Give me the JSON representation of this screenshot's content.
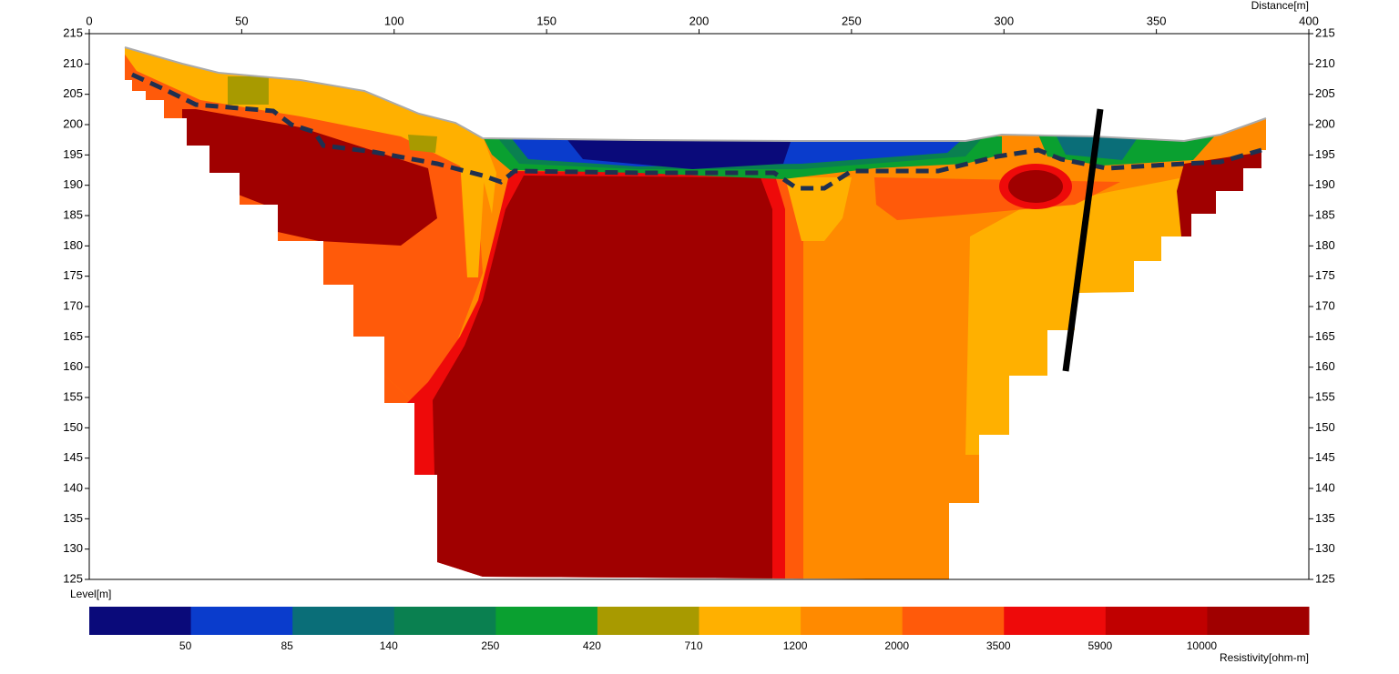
{
  "chart_data": {
    "type": "contour",
    "x_label": "Distance[m]",
    "y_label": "Level[m]",
    "xlim": [
      0,
      400
    ],
    "xticks": [
      0,
      50,
      100,
      150,
      200,
      250,
      300,
      350,
      400
    ],
    "ylim": [
      125,
      215
    ],
    "yticks": [
      125,
      130,
      135,
      140,
      145,
      150,
      155,
      160,
      165,
      170,
      175,
      180,
      185,
      190,
      195,
      200,
      205,
      210,
      215
    ],
    "colorbar": {
      "label": "Resistivity[ohm-m]",
      "levels": [
        50,
        85,
        140,
        250,
        420,
        710,
        1200,
        2000,
        3500,
        5900,
        10000
      ],
      "colors": [
        "#0a0a7a",
        "#0a3ccc",
        "#0a6e78",
        "#0a8050",
        "#0aa030",
        "#a89a00",
        "#ffb000",
        "#ff8a00",
        "#ff5a0a",
        "#ee0a0a",
        "#c00000",
        "#a00000"
      ]
    }
  }
}
